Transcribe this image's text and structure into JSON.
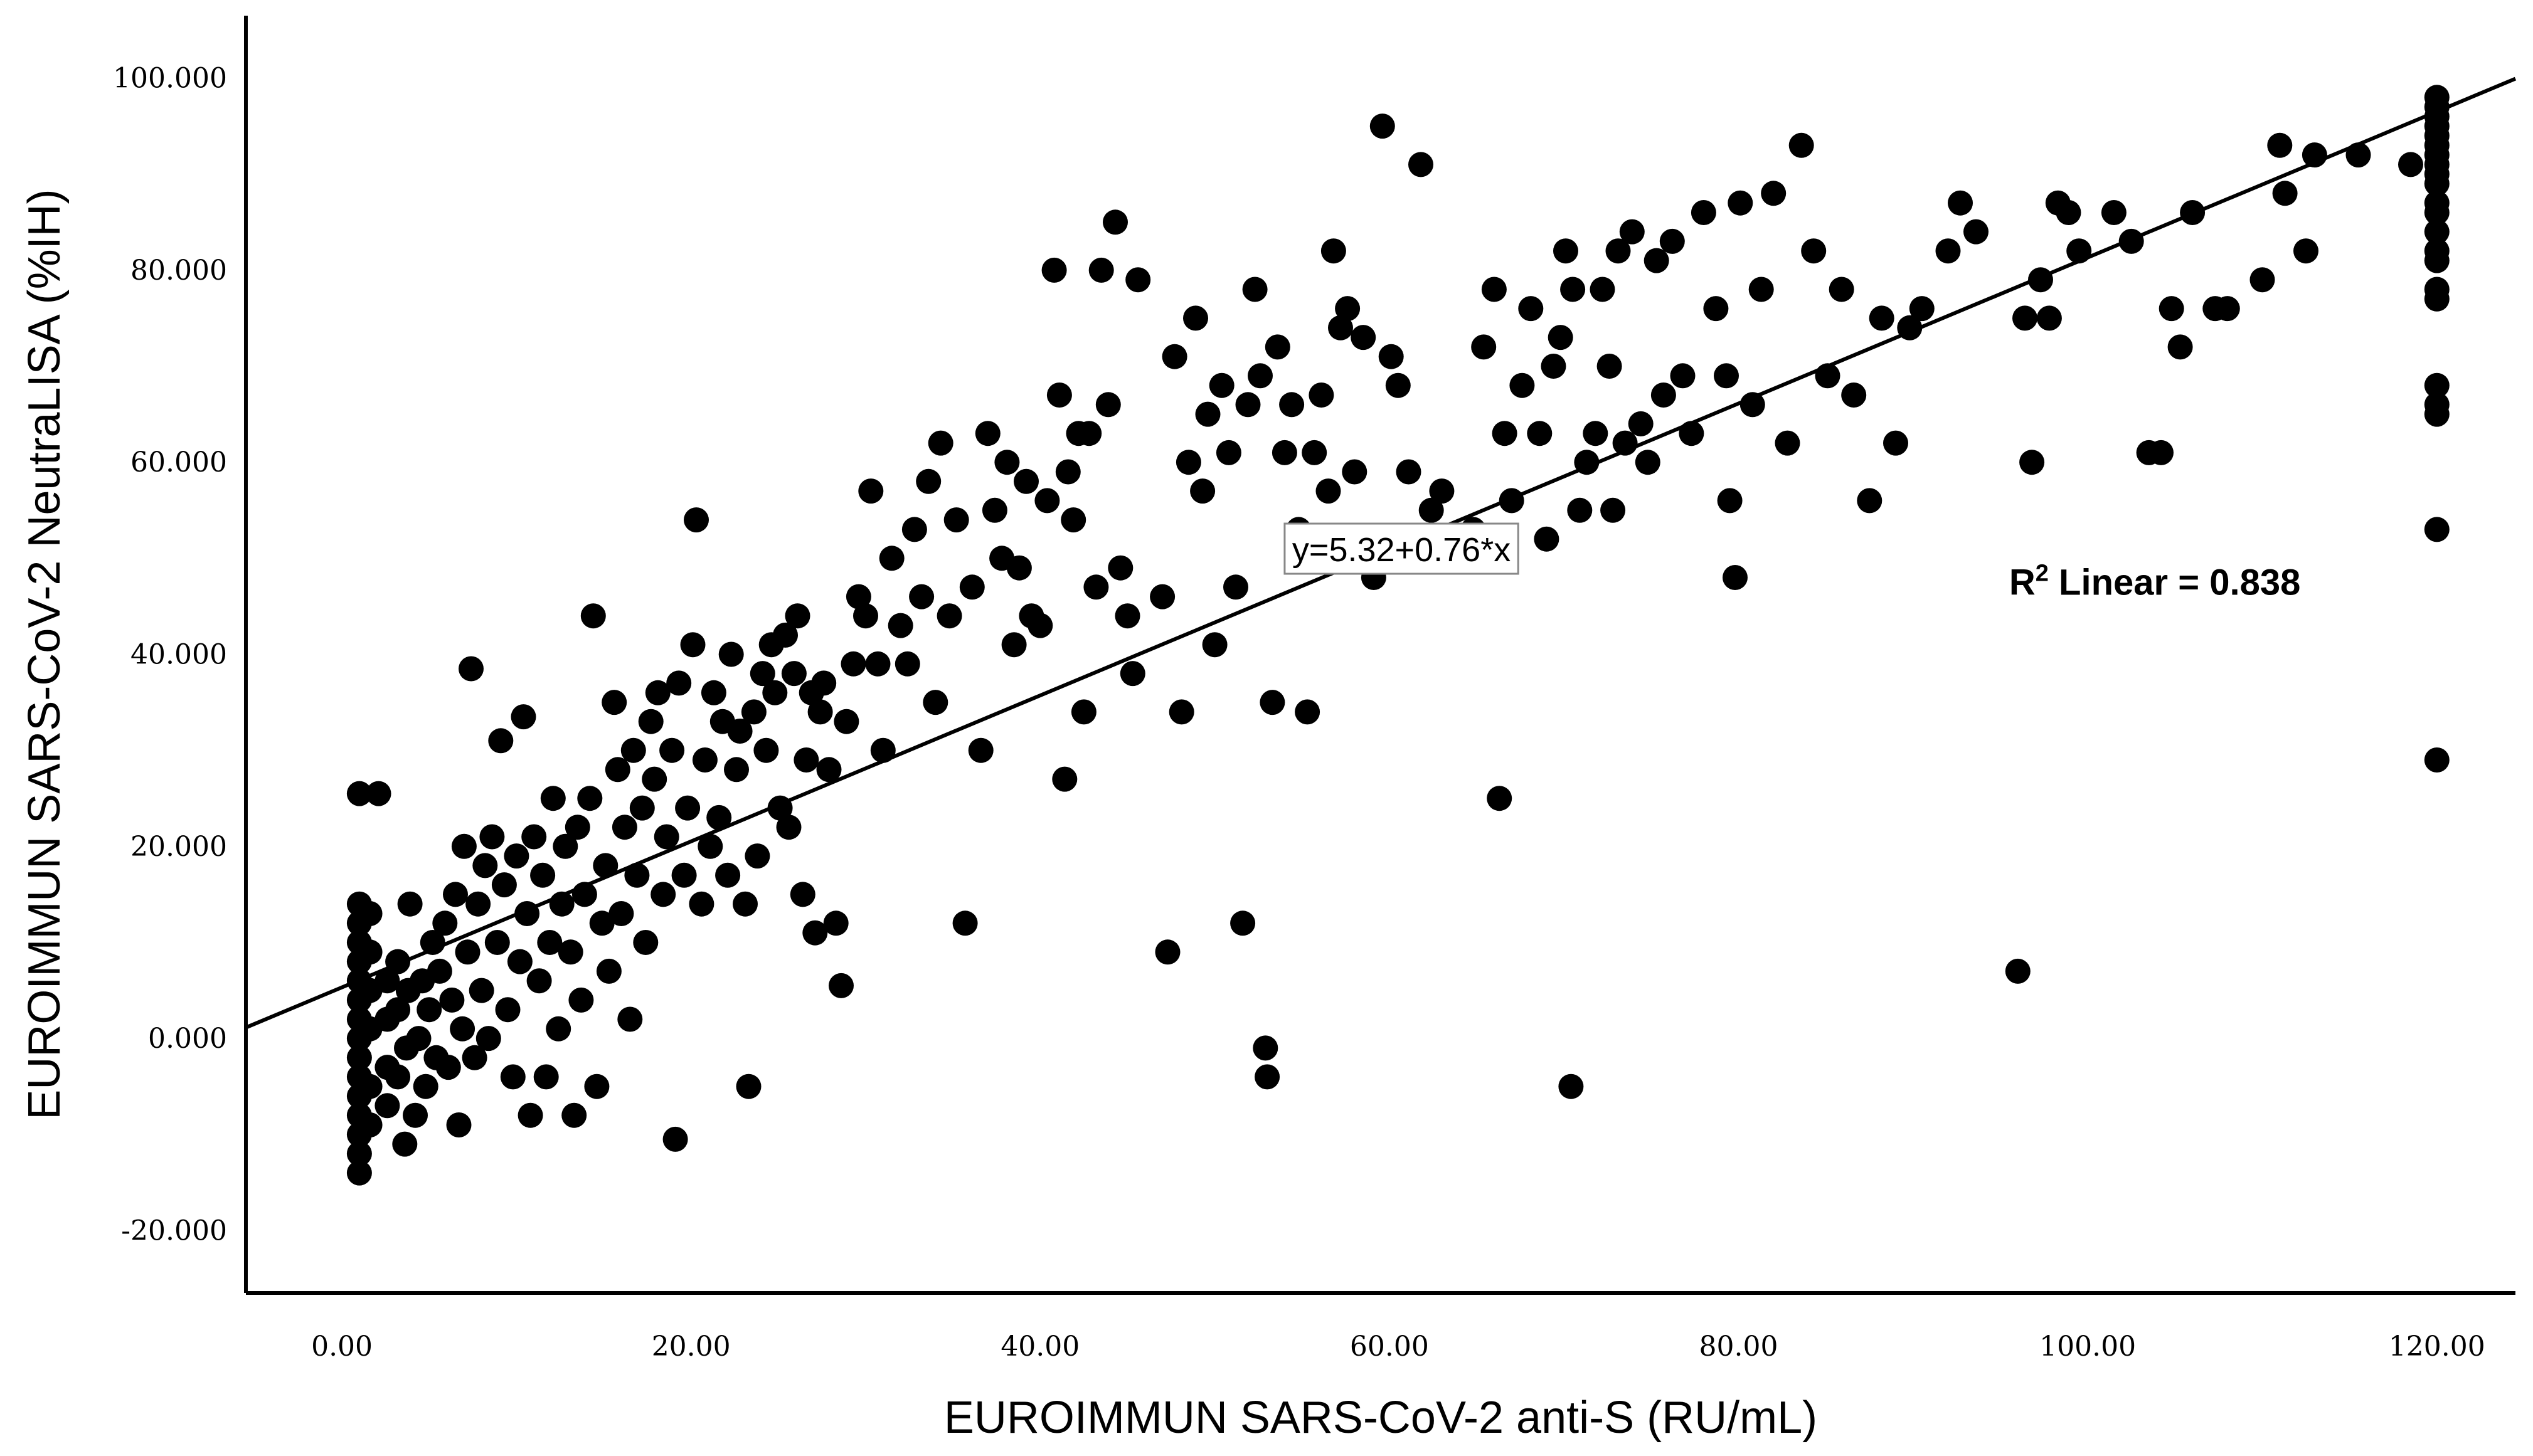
{
  "chart_data": {
    "type": "scatter",
    "title": "",
    "xlabel": "EUROIMMUN SARS-CoV-2 anti-S (RU/mL)",
    "ylabel": "EUROIMMUN SARS-CoV-2 NeutraLISA (%IH)",
    "xlim": [
      -5.5,
      124.5
    ],
    "ylim": [
      -26.5,
      106.5
    ],
    "x_ticks": [
      "0.00",
      "20.00",
      "40.00",
      "60.00",
      "80.00",
      "100.00",
      "120.00"
    ],
    "x_tick_values": [
      0,
      20,
      40,
      60,
      80,
      100,
      120
    ],
    "y_ticks": [
      "-20.000",
      "0.000",
      "20.000",
      "40.000",
      "60.000",
      "80.000",
      "100.000"
    ],
    "y_tick_values": [
      -20,
      0,
      20,
      40,
      60,
      80,
      100
    ],
    "grid": false,
    "fit_line": {
      "intercept": 5.32,
      "slope": 0.76,
      "label": "y=5.32+0.76*x",
      "label_at": [
        54,
        51
      ]
    },
    "r2_label": {
      "base": "R",
      "sup": "2",
      "rest": " Linear = 0.838",
      "at": [
        95.5,
        47.5
      ]
    },
    "marker_color": "#000000",
    "points": [
      [
        1,
        -14
      ],
      [
        1,
        -12
      ],
      [
        1,
        -10
      ],
      [
        1,
        -8
      ],
      [
        1,
        -6
      ],
      [
        1,
        -4
      ],
      [
        1,
        -2
      ],
      [
        1,
        0
      ],
      [
        1,
        2
      ],
      [
        1,
        4
      ],
      [
        1,
        6
      ],
      [
        1,
        8
      ],
      [
        1,
        10
      ],
      [
        1,
        12
      ],
      [
        1,
        14
      ],
      [
        1,
        25.5
      ],
      [
        1.6,
        -9
      ],
      [
        1.6,
        -5
      ],
      [
        1.6,
        1
      ],
      [
        1.6,
        5
      ],
      [
        1.6,
        9
      ],
      [
        1.6,
        13
      ],
      [
        2.1,
        25.5
      ],
      [
        2.6,
        -7
      ],
      [
        2.6,
        -3
      ],
      [
        2.6,
        2
      ],
      [
        2.6,
        6
      ],
      [
        3.2,
        -4
      ],
      [
        3.2,
        3
      ],
      [
        3.2,
        8
      ],
      [
        3.6,
        -11
      ],
      [
        3.7,
        -1
      ],
      [
        3.8,
        5
      ],
      [
        3.9,
        14
      ],
      [
        4.2,
        -8
      ],
      [
        4.4,
        0
      ],
      [
        4.6,
        6
      ],
      [
        4.8,
        -5
      ],
      [
        5,
        3
      ],
      [
        5.2,
        10
      ],
      [
        5.4,
        -2
      ],
      [
        5.6,
        7
      ],
      [
        5.9,
        12
      ],
      [
        6.1,
        -3
      ],
      [
        6.3,
        4
      ],
      [
        6.5,
        15
      ],
      [
        6.7,
        -9
      ],
      [
        6.9,
        1
      ],
      [
        7,
        20
      ],
      [
        7.2,
        9
      ],
      [
        7.4,
        38.5
      ],
      [
        7.6,
        -2
      ],
      [
        7.8,
        14
      ],
      [
        8,
        5
      ],
      [
        8.2,
        18
      ],
      [
        8.4,
        0
      ],
      [
        8.6,
        21
      ],
      [
        8.9,
        10
      ],
      [
        9.1,
        31
      ],
      [
        9.3,
        16
      ],
      [
        9.5,
        3
      ],
      [
        9.8,
        -4
      ],
      [
        10,
        19
      ],
      [
        10.2,
        8
      ],
      [
        10.4,
        33.5
      ],
      [
        10.6,
        13
      ],
      [
        10.8,
        -8
      ],
      [
        11,
        21
      ],
      [
        11.3,
        6
      ],
      [
        11.5,
        17
      ],
      [
        11.7,
        -4
      ],
      [
        11.9,
        10
      ],
      [
        12.1,
        25
      ],
      [
        12.4,
        1
      ],
      [
        12.6,
        14
      ],
      [
        12.8,
        20
      ],
      [
        13.1,
        9
      ],
      [
        13.3,
        -8
      ],
      [
        13.5,
        22
      ],
      [
        13.7,
        4
      ],
      [
        13.9,
        15
      ],
      [
        14.2,
        25
      ],
      [
        14.4,
        44
      ],
      [
        14.6,
        -5
      ],
      [
        14.9,
        12
      ],
      [
        15.1,
        18
      ],
      [
        15.3,
        7
      ],
      [
        15.6,
        35
      ],
      [
        15.8,
        28
      ],
      [
        16,
        13
      ],
      [
        16.2,
        22
      ],
      [
        16.5,
        2
      ],
      [
        16.7,
        30
      ],
      [
        16.9,
        17
      ],
      [
        17.2,
        24
      ],
      [
        17.4,
        10
      ],
      [
        17.7,
        33
      ],
      [
        17.9,
        27
      ],
      [
        18.1,
        36
      ],
      [
        18.4,
        15
      ],
      [
        18.6,
        21
      ],
      [
        18.9,
        30
      ],
      [
        19.1,
        -10.5
      ],
      [
        19.3,
        37
      ],
      [
        19.6,
        17
      ],
      [
        19.8,
        24
      ],
      [
        20.1,
        41
      ],
      [
        20.3,
        54
      ],
      [
        20.6,
        14
      ],
      [
        20.8,
        29
      ],
      [
        21.1,
        20
      ],
      [
        21.3,
        36
      ],
      [
        21.6,
        23
      ],
      [
        21.8,
        33
      ],
      [
        22.1,
        17
      ],
      [
        22.3,
        40
      ],
      [
        22.6,
        28
      ],
      [
        22.8,
        32
      ],
      [
        23.1,
        14
      ],
      [
        23.3,
        -5
      ],
      [
        23.6,
        34
      ],
      [
        23.8,
        19
      ],
      [
        24.1,
        38
      ],
      [
        24.3,
        30
      ],
      [
        24.6,
        41
      ],
      [
        24.8,
        36
      ],
      [
        25.1,
        24
      ],
      [
        25.4,
        42
      ],
      [
        25.6,
        22
      ],
      [
        25.9,
        38
      ],
      [
        26.1,
        44
      ],
      [
        26.4,
        15
      ],
      [
        26.6,
        29
      ],
      [
        26.9,
        36
      ],
      [
        27.1,
        11
      ],
      [
        27.4,
        34
      ],
      [
        27.6,
        37
      ],
      [
        27.9,
        28
      ],
      [
        28.3,
        12
      ],
      [
        28.6,
        5.5
      ],
      [
        28.9,
        33
      ],
      [
        29.3,
        39
      ],
      [
        29.6,
        46
      ],
      [
        30,
        44
      ],
      [
        30.3,
        57
      ],
      [
        30.7,
        39
      ],
      [
        31,
        30
      ],
      [
        31.5,
        50
      ],
      [
        32,
        43
      ],
      [
        32.4,
        39
      ],
      [
        32.8,
        53
      ],
      [
        33.2,
        46
      ],
      [
        33.6,
        58
      ],
      [
        34,
        35
      ],
      [
        34.3,
        62
      ],
      [
        34.8,
        44
      ],
      [
        35.2,
        54
      ],
      [
        35.7,
        12
      ],
      [
        36.1,
        47
      ],
      [
        36.6,
        30
      ],
      [
        37,
        63
      ],
      [
        37.4,
        55
      ],
      [
        37.8,
        50
      ],
      [
        38.1,
        60
      ],
      [
        38.5,
        41
      ],
      [
        38.8,
        49
      ],
      [
        39.2,
        58
      ],
      [
        39.5,
        44
      ],
      [
        40,
        43
      ],
      [
        40.4,
        56
      ],
      [
        40.8,
        80
      ],
      [
        41.1,
        67
      ],
      [
        41.4,
        27
      ],
      [
        41.6,
        59
      ],
      [
        41.9,
        54
      ],
      [
        42.2,
        63
      ],
      [
        42.5,
        34
      ],
      [
        42.8,
        63
      ],
      [
        43.2,
        47
      ],
      [
        43.5,
        80
      ],
      [
        43.9,
        66
      ],
      [
        44.3,
        85
      ],
      [
        44.6,
        49
      ],
      [
        45,
        44
      ],
      [
        45.3,
        38
      ],
      [
        45.6,
        79
      ],
      [
        47,
        46
      ],
      [
        47.3,
        9
      ],
      [
        47.7,
        71
      ],
      [
        48.1,
        34
      ],
      [
        48.5,
        60
      ],
      [
        48.9,
        75
      ],
      [
        49.3,
        57
      ],
      [
        49.6,
        65
      ],
      [
        50,
        41
      ],
      [
        50.4,
        68
      ],
      [
        50.8,
        61
      ],
      [
        51.2,
        47
      ],
      [
        51.6,
        12
      ],
      [
        51.9,
        66
      ],
      [
        52.3,
        78
      ],
      [
        52.6,
        69
      ],
      [
        52.9,
        -1
      ],
      [
        53,
        -4
      ],
      [
        53.3,
        35
      ],
      [
        53.6,
        72
      ],
      [
        54,
        61
      ],
      [
        54.4,
        66
      ],
      [
        54.8,
        53
      ],
      [
        55.3,
        34
      ],
      [
        55.7,
        61
      ],
      [
        56.1,
        67
      ],
      [
        56.5,
        57
      ],
      [
        56.8,
        82
      ],
      [
        57.2,
        74
      ],
      [
        57.6,
        76
      ],
      [
        58,
        59
      ],
      [
        58.5,
        73
      ],
      [
        59.1,
        48
      ],
      [
        59.6,
        95
      ],
      [
        60.1,
        71
      ],
      [
        60.5,
        68
      ],
      [
        61.1,
        59
      ],
      [
        61.8,
        91
      ],
      [
        62.4,
        55
      ],
      [
        63,
        57
      ],
      [
        63.6,
        52
      ],
      [
        64.2,
        50
      ],
      [
        64.8,
        53
      ],
      [
        65.4,
        72
      ],
      [
        66,
        78
      ],
      [
        66.3,
        25
      ],
      [
        66.6,
        63
      ],
      [
        67,
        56
      ],
      [
        67.6,
        68
      ],
      [
        68.1,
        76
      ],
      [
        68.6,
        63
      ],
      [
        69,
        52
      ],
      [
        69.4,
        70
      ],
      [
        69.8,
        73
      ],
      [
        70.1,
        82
      ],
      [
        70.4,
        -5
      ],
      [
        70.5,
        78
      ],
      [
        70.9,
        55
      ],
      [
        71.3,
        60
      ],
      [
        71.8,
        63
      ],
      [
        72.2,
        78
      ],
      [
        72.6,
        70
      ],
      [
        72.8,
        55
      ],
      [
        73.1,
        82
      ],
      [
        73.5,
        62
      ],
      [
        73.9,
        84
      ],
      [
        74.4,
        64
      ],
      [
        74.8,
        60
      ],
      [
        75.3,
        81
      ],
      [
        75.7,
        67
      ],
      [
        76.2,
        83
      ],
      [
        76.8,
        69
      ],
      [
        77.3,
        63
      ],
      [
        78,
        86
      ],
      [
        78.7,
        76
      ],
      [
        79.3,
        69
      ],
      [
        79.5,
        56
      ],
      [
        79.8,
        48
      ],
      [
        80.1,
        87
      ],
      [
        80.8,
        66
      ],
      [
        81.3,
        78
      ],
      [
        82,
        88
      ],
      [
        82.8,
        62
      ],
      [
        83.6,
        93
      ],
      [
        84.3,
        82
      ],
      [
        85.1,
        69
      ],
      [
        85.9,
        78
      ],
      [
        86.6,
        67
      ],
      [
        87.5,
        56
      ],
      [
        88.2,
        75
      ],
      [
        89,
        62
      ],
      [
        89.8,
        74
      ],
      [
        90.5,
        76
      ],
      [
        92,
        82
      ],
      [
        92.7,
        87
      ],
      [
        93.6,
        84
      ],
      [
        96,
        7
      ],
      [
        96.4,
        75
      ],
      [
        96.8,
        60
      ],
      [
        97.3,
        79
      ],
      [
        97.8,
        75
      ],
      [
        98.3,
        87
      ],
      [
        98.9,
        86
      ],
      [
        99.5,
        82
      ],
      [
        101.5,
        86
      ],
      [
        102.5,
        83
      ],
      [
        103.5,
        61
      ],
      [
        104.2,
        61
      ],
      [
        104.8,
        76
      ],
      [
        105.3,
        72
      ],
      [
        106,
        86
      ],
      [
        107.3,
        76
      ],
      [
        108,
        76
      ],
      [
        110,
        79
      ],
      [
        111,
        93
      ],
      [
        111.3,
        88
      ],
      [
        112.5,
        82
      ],
      [
        113,
        92
      ],
      [
        115.5,
        92
      ],
      [
        118.5,
        91
      ],
      [
        120,
        29
      ],
      [
        120,
        53
      ],
      [
        120,
        65
      ],
      [
        120,
        66
      ],
      [
        120,
        68
      ],
      [
        120,
        77
      ],
      [
        120,
        78
      ],
      [
        120,
        81
      ],
      [
        120,
        82
      ],
      [
        120,
        84
      ],
      [
        120,
        86
      ],
      [
        120,
        87
      ],
      [
        120,
        89
      ],
      [
        120,
        90
      ],
      [
        120,
        91
      ],
      [
        120,
        92
      ],
      [
        120,
        93
      ],
      [
        120,
        94
      ],
      [
        120,
        95
      ],
      [
        120,
        96
      ],
      [
        120,
        97
      ],
      [
        120,
        98
      ]
    ]
  }
}
